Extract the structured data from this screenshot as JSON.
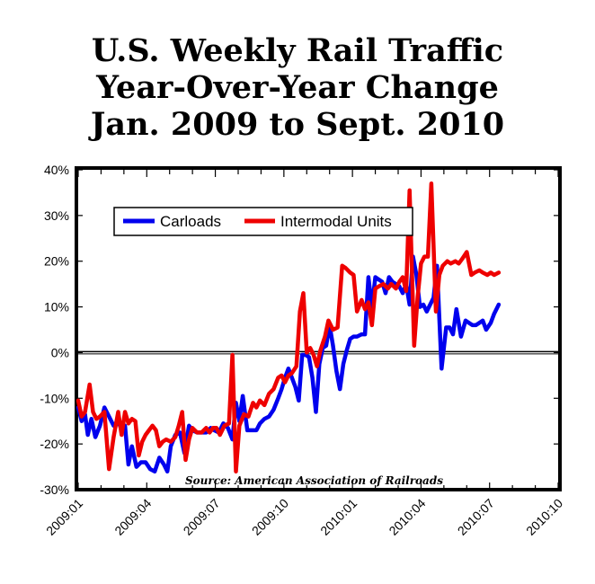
{
  "chart_data": {
    "type": "line",
    "title_lines": [
      "U.S. Weekly Rail Traffic",
      "Year-Over-Year Change",
      "Jan. 2009 to Sept. 2010"
    ],
    "source": "Source: American Association of Railroads",
    "x_tick_labels": [
      "2009:01",
      "2009:04",
      "2009:07",
      "2009:10",
      "2010:01",
      "2010:04",
      "2010:07",
      "2010:10"
    ],
    "y_ticks": [
      40,
      30,
      20,
      10,
      0,
      -10,
      -20,
      -30
    ],
    "y_tick_labels": [
      "40%",
      "30%",
      "20%",
      "10%",
      "0%",
      "-10%",
      "-20%",
      "-30%"
    ],
    "ylim": [
      -30,
      40
    ],
    "xlim_months": [
      0,
      21
    ],
    "zero_line": true,
    "legend_position": "upper-left",
    "series": [
      {
        "name": "Carloads",
        "color": "#0000ee",
        "points": [
          [
            0.0,
            -12
          ],
          [
            0.15,
            -15
          ],
          [
            0.3,
            -13.5
          ],
          [
            0.42,
            -18
          ],
          [
            0.58,
            -14.5
          ],
          [
            0.75,
            -18.5
          ],
          [
            0.95,
            -16
          ],
          [
            1.15,
            -12
          ],
          [
            1.35,
            -14
          ],
          [
            1.55,
            -16
          ],
          [
            1.75,
            -15
          ],
          [
            1.9,
            -17
          ],
          [
            2.05,
            -16
          ],
          [
            2.2,
            -24.5
          ],
          [
            2.35,
            -20.5
          ],
          [
            2.55,
            -25
          ],
          [
            2.75,
            -24
          ],
          [
            2.95,
            -24
          ],
          [
            3.15,
            -25.5
          ],
          [
            3.35,
            -26
          ],
          [
            3.55,
            -23
          ],
          [
            3.75,
            -24.5
          ],
          [
            3.9,
            -26
          ],
          [
            4.05,
            -20.5
          ],
          [
            4.25,
            -18
          ],
          [
            4.45,
            -17.5
          ],
          [
            4.65,
            -22
          ],
          [
            4.85,
            -16
          ],
          [
            5.0,
            -17
          ],
          [
            5.2,
            -17.5
          ],
          [
            5.4,
            -17.5
          ],
          [
            5.6,
            -17.5
          ],
          [
            5.8,
            -16.5
          ],
          [
            5.95,
            -17
          ],
          [
            6.15,
            -17.5
          ],
          [
            6.35,
            -15.5
          ],
          [
            6.55,
            -16.5
          ],
          [
            6.75,
            -19
          ],
          [
            6.9,
            -11
          ],
          [
            7.05,
            -15
          ],
          [
            7.2,
            -9.5
          ],
          [
            7.4,
            -17
          ],
          [
            7.6,
            -17
          ],
          [
            7.8,
            -17
          ],
          [
            7.95,
            -15.5
          ],
          [
            8.15,
            -14.5
          ],
          [
            8.35,
            -14
          ],
          [
            8.55,
            -12.5
          ],
          [
            8.75,
            -10
          ],
          [
            8.9,
            -8
          ],
          [
            9.05,
            -5.5
          ],
          [
            9.2,
            -3.5
          ],
          [
            9.35,
            -5.5
          ],
          [
            9.5,
            -7.5
          ],
          [
            9.65,
            -10.5
          ],
          [
            9.8,
            -0.5
          ],
          [
            9.95,
            -0.5
          ],
          [
            10.1,
            -1
          ],
          [
            10.25,
            -5.5
          ],
          [
            10.4,
            -13
          ],
          [
            10.55,
            -2.5
          ],
          [
            10.7,
            1
          ],
          [
            10.85,
            1.5
          ],
          [
            11.0,
            6
          ],
          [
            11.15,
            1.5
          ],
          [
            11.3,
            -4
          ],
          [
            11.45,
            -8
          ],
          [
            11.6,
            -2.5
          ],
          [
            11.75,
            0.5
          ],
          [
            11.9,
            3
          ],
          [
            12.05,
            3.5
          ],
          [
            12.2,
            3.5
          ],
          [
            12.4,
            4
          ],
          [
            12.55,
            4
          ],
          [
            12.7,
            16.5
          ],
          [
            12.85,
            10
          ],
          [
            13.0,
            16.5
          ],
          [
            13.15,
            16
          ],
          [
            13.3,
            15.5
          ],
          [
            13.45,
            13
          ],
          [
            13.6,
            16.5
          ],
          [
            13.75,
            15.5
          ],
          [
            13.9,
            15
          ],
          [
            14.05,
            14.5
          ],
          [
            14.2,
            13
          ],
          [
            14.35,
            15
          ],
          [
            14.5,
            10.5
          ],
          [
            14.65,
            21
          ],
          [
            14.8,
            17
          ],
          [
            14.95,
            10
          ],
          [
            15.1,
            10.5
          ],
          [
            15.25,
            9
          ],
          [
            15.4,
            10.5
          ],
          [
            15.55,
            12
          ],
          [
            15.7,
            19
          ],
          [
            15.9,
            -3.5
          ],
          [
            16.1,
            5.5
          ],
          [
            16.25,
            5.5
          ],
          [
            16.4,
            4
          ],
          [
            16.55,
            9.5
          ],
          [
            16.75,
            3.5
          ],
          [
            16.95,
            7
          ],
          [
            17.1,
            6.5
          ],
          [
            17.25,
            6
          ],
          [
            17.4,
            6
          ],
          [
            17.55,
            6.5
          ],
          [
            17.7,
            7
          ],
          [
            17.85,
            5
          ],
          [
            18.05,
            6.5
          ],
          [
            18.2,
            8.5
          ],
          [
            18.4,
            10.5
          ]
        ]
      },
      {
        "name": "Intermodal Units",
        "color": "#ee0000",
        "points": [
          [
            0.0,
            -10.5
          ],
          [
            0.15,
            -14
          ],
          [
            0.3,
            -13
          ],
          [
            0.5,
            -7
          ],
          [
            0.65,
            -13
          ],
          [
            0.8,
            -14.5
          ],
          [
            0.95,
            -14
          ],
          [
            1.15,
            -13
          ],
          [
            1.35,
            -25.5
          ],
          [
            1.55,
            -18.5
          ],
          [
            1.75,
            -13
          ],
          [
            1.9,
            -18
          ],
          [
            2.05,
            -13
          ],
          [
            2.2,
            -15.5
          ],
          [
            2.35,
            -14.5
          ],
          [
            2.5,
            -15
          ],
          [
            2.65,
            -22.5
          ],
          [
            2.8,
            -19.5
          ],
          [
            2.95,
            -18
          ],
          [
            3.1,
            -17
          ],
          [
            3.25,
            -16
          ],
          [
            3.4,
            -17
          ],
          [
            3.55,
            -20.5
          ],
          [
            3.7,
            -19.5
          ],
          [
            3.85,
            -19
          ],
          [
            4.05,
            -19.5
          ],
          [
            4.25,
            -18.5
          ],
          [
            4.4,
            -16
          ],
          [
            4.55,
            -13
          ],
          [
            4.7,
            -23.5
          ],
          [
            4.85,
            -19
          ],
          [
            5.0,
            -16.5
          ],
          [
            5.2,
            -17.5
          ],
          [
            5.4,
            -17.5
          ],
          [
            5.6,
            -16.5
          ],
          [
            5.75,
            -17.5
          ],
          [
            5.9,
            -16.5
          ],
          [
            6.05,
            -16.5
          ],
          [
            6.2,
            -18
          ],
          [
            6.4,
            -16
          ],
          [
            6.6,
            -15.5
          ],
          [
            6.75,
            -0.5
          ],
          [
            6.9,
            -26
          ],
          [
            7.05,
            -16
          ],
          [
            7.25,
            -13.5
          ],
          [
            7.45,
            -14
          ],
          [
            7.65,
            -11
          ],
          [
            7.8,
            -12
          ],
          [
            7.95,
            -10.5
          ],
          [
            8.15,
            -11.5
          ],
          [
            8.35,
            -9
          ],
          [
            8.55,
            -8
          ],
          [
            8.75,
            -5.5
          ],
          [
            8.9,
            -5
          ],
          [
            9.05,
            -6.5
          ],
          [
            9.2,
            -5
          ],
          [
            9.35,
            -4.5
          ],
          [
            9.55,
            -3
          ],
          [
            9.7,
            9
          ],
          [
            9.85,
            13
          ],
          [
            10.0,
            0
          ],
          [
            10.15,
            1
          ],
          [
            10.3,
            -0.5
          ],
          [
            10.45,
            -3
          ],
          [
            10.6,
            0.5
          ],
          [
            10.8,
            3.5
          ],
          [
            10.95,
            7
          ],
          [
            11.15,
            5
          ],
          [
            11.35,
            5.5
          ],
          [
            11.55,
            19
          ],
          [
            11.7,
            18.5
          ],
          [
            11.9,
            17.5
          ],
          [
            12.05,
            17
          ],
          [
            12.2,
            9
          ],
          [
            12.4,
            11.5
          ],
          [
            12.55,
            9.5
          ],
          [
            12.7,
            11
          ],
          [
            12.85,
            6
          ],
          [
            13.0,
            14
          ],
          [
            13.15,
            14.5
          ],
          [
            13.35,
            15
          ],
          [
            13.55,
            14
          ],
          [
            13.7,
            15
          ],
          [
            13.9,
            14
          ],
          [
            14.05,
            15.5
          ],
          [
            14.2,
            16.5
          ],
          [
            14.35,
            13.5
          ],
          [
            14.5,
            35.5
          ],
          [
            14.7,
            1.5
          ],
          [
            14.85,
            12
          ],
          [
            15.0,
            19.5
          ],
          [
            15.15,
            21
          ],
          [
            15.3,
            21
          ],
          [
            15.45,
            37
          ],
          [
            15.65,
            9
          ],
          [
            15.8,
            17
          ],
          [
            15.95,
            19
          ],
          [
            16.15,
            20
          ],
          [
            16.3,
            19.5
          ],
          [
            16.5,
            20
          ],
          [
            16.65,
            19.5
          ],
          [
            16.8,
            20.5
          ],
          [
            17.0,
            22
          ],
          [
            17.2,
            17
          ],
          [
            17.35,
            17.5
          ],
          [
            17.55,
            18
          ],
          [
            17.7,
            17.5
          ],
          [
            17.9,
            17
          ],
          [
            18.05,
            17.5
          ],
          [
            18.2,
            17
          ],
          [
            18.4,
            17.5
          ]
        ]
      }
    ]
  }
}
